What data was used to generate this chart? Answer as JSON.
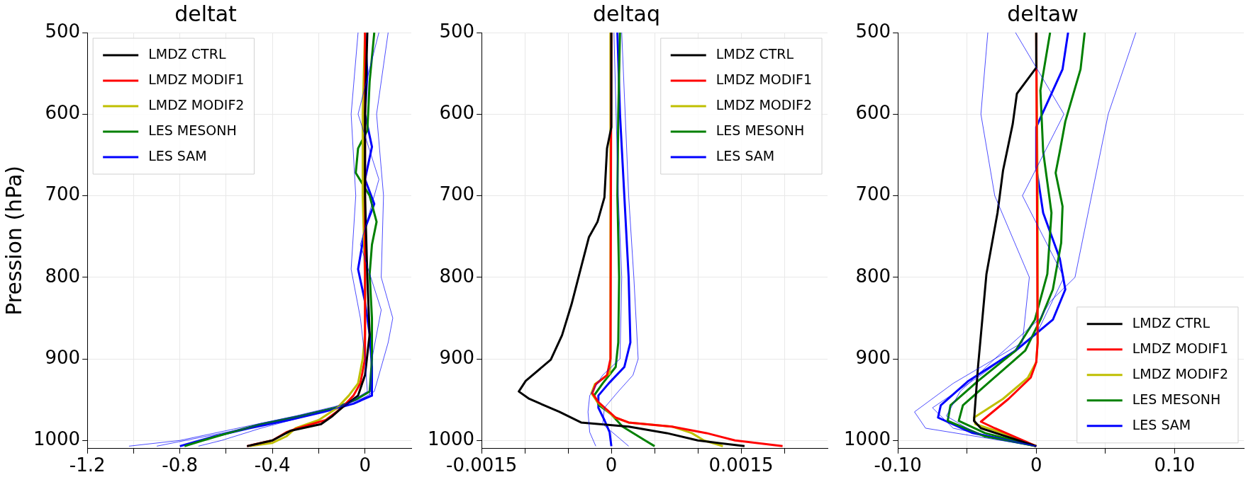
{
  "chart_data": [
    {
      "type": "line",
      "title": "deltat",
      "ylabel": "Pression (hPa)",
      "xlim": [
        -1.2,
        0.2
      ],
      "xticks": [
        -1.2,
        {
          "value": -1.0,
          "label": null
        },
        -0.8,
        {
          "value": -0.6,
          "label": null
        },
        -0.4,
        {
          "value": -0.2,
          "label": null
        },
        0
      ],
      "ylim": [
        1010,
        500
      ],
      "yticks": [
        500,
        600,
        700,
        800,
        900,
        1000
      ],
      "grid": true,
      "legend": "top left",
      "series": [
        {
          "color": "#0000ff",
          "x": [
            0.1,
            0.05,
            0.08,
            0.07,
            0.12,
            0.1,
            0.04,
            -0.05,
            -0.25,
            -0.45,
            -0.62,
            -0.72
          ],
          "values": [
            500,
            600,
            700,
            800,
            850,
            880,
            940,
            955,
            970,
            985,
            1000,
            1007
          ]
        },
        {
          "color": "#0000ff",
          "x": [
            -0.03,
            -0.06,
            -0.04,
            -0.06,
            -0.02,
            0.0,
            0.01,
            -0.08,
            -0.3,
            -0.55,
            -0.8,
            -1.02
          ],
          "values": [
            500,
            600,
            700,
            790,
            850,
            900,
            940,
            955,
            970,
            985,
            1000,
            1007
          ]
        },
        {
          "color": "#0000ff",
          "x": [
            0.06,
            -0.03,
            0.06,
            -0.02,
            0.07,
            0.03,
            0.02,
            -0.12,
            -0.35,
            -0.6,
            -0.9
          ],
          "values": [
            500,
            600,
            680,
            760,
            840,
            900,
            945,
            960,
            975,
            990,
            1007
          ]
        },
        {
          "name": "LMDZ CTRL",
          "color": "#000000",
          "x": [
            0.01,
            0.0,
            0.0,
            0.01,
            0.02,
            0.0,
            -0.03,
            -0.1,
            -0.14,
            -0.19,
            -0.32,
            -0.4,
            -0.51
          ],
          "values": [
            500,
            600,
            700,
            800,
            870,
            920,
            945,
            960,
            970,
            980,
            988,
            1000,
            1007
          ]
        },
        {
          "name": "LMDZ MODIF1",
          "color": "#ff0000",
          "x": [
            0.0,
            0.0,
            -0.02,
            -0.05,
            -0.1,
            -0.17,
            -0.29,
            -0.34,
            -0.4,
            -0.48,
            -0.51
          ],
          "values": [
            500,
            900,
            930,
            945,
            960,
            975,
            985,
            990,
            1000,
            1005,
            1007
          ]
        },
        {
          "name": "LMDZ MODIF2",
          "color": "#bfbf00",
          "x": [
            0.0,
            -0.01,
            -0.01,
            0.0,
            0.0,
            -0.01,
            -0.03,
            -0.07,
            -0.12,
            -0.2,
            -0.3,
            -0.34,
            -0.4,
            -0.5
          ],
          "values": [
            500,
            600,
            700,
            800,
            870,
            900,
            930,
            945,
            960,
            975,
            985,
            995,
            1003,
            1007
          ]
        },
        {
          "name": "LES MESONH",
          "color": "#008000",
          "x": [
            0.04,
            0.02,
            0.01,
            -0.03,
            -0.04,
            0.02,
            0.05,
            0.03,
            0.02,
            0.03,
            0.03,
            0.02,
            -0.04,
            -0.13,
            -0.28,
            -0.45,
            -0.58,
            -0.7,
            -0.78
          ],
          "values": [
            500,
            560,
            620,
            642,
            672,
            700,
            732,
            760,
            796,
            850,
            900,
            940,
            950,
            960,
            970,
            980,
            990,
            1000,
            1007
          ]
        },
        {
          "name": "LES SAM",
          "color": "#0000ff",
          "x": [
            0.0,
            0.01,
            0.0,
            0.03,
            0.0,
            0.04,
            0.0,
            -0.03,
            0.0,
            0.02,
            0.03,
            0.03,
            -0.05,
            -0.18,
            -0.33,
            -0.5,
            -0.65,
            -0.8
          ],
          "values": [
            500,
            550,
            600,
            640,
            680,
            710,
            740,
            790,
            830,
            870,
            910,
            945,
            955,
            965,
            975,
            985,
            995,
            1007
          ]
        }
      ]
    },
    {
      "type": "line",
      "title": "deltaq",
      "xlim": [
        -0.0015,
        0.0025
      ],
      "xticks": [
        -0.0015,
        {
          "value": -0.001,
          "label": null
        },
        {
          "value": -0.0005,
          "label": null
        },
        0,
        {
          "value": 0.0005,
          "label": null
        },
        {
          "value": 0.001,
          "label": null
        },
        0.0015,
        {
          "value": 0.002,
          "label": null
        }
      ],
      "ylim": [
        1010,
        500
      ],
      "yticks": [
        500,
        600,
        700,
        800,
        900,
        1000
      ],
      "grid": true,
      "legend": "top right",
      "series": [
        {
          "color": "#0000ff",
          "x": [
            0.00012,
            0.0002,
            0.00026,
            0.00031,
            0.00025,
            8e-05,
            -8e-05,
            -0.0001,
            0.0002
          ],
          "values": [
            500,
            700,
            800,
            900,
            920,
            940,
            960,
            980,
            1007
          ]
        },
        {
          "color": "#0000ff",
          "x": [
            3e-05,
            8e-05,
            0.00012,
            0.0001,
            -0.0001,
            -0.00025,
            -0.00027,
            -0.00025,
            -0.00018
          ],
          "values": [
            500,
            700,
            800,
            900,
            920,
            945,
            965,
            990,
            1007
          ]
        },
        {
          "name": "LMDZ CTRL",
          "color": "#000000",
          "x": [
            0.0,
            0.0,
            -5e-05,
            -8e-05,
            -0.00016,
            -0.00026,
            -0.00037,
            -0.00046,
            -0.00057,
            -0.0007,
            -0.00099,
            -0.00107,
            -0.00095,
            -0.0006,
            -0.00035,
            0.0002,
            0.00064,
            0.001,
            0.00154
          ],
          "values": [
            500,
            616,
            642,
            702,
            732,
            751,
            796,
            833,
            871,
            901,
            927,
            940,
            949,
            965,
            978,
            983,
            991,
            1000,
            1007
          ]
        },
        {
          "name": "LMDZ MODIF1",
          "color": "#ff0000",
          "x": [
            0.0,
            -1e-05,
            -5e-05,
            -0.00018,
            -0.00022,
            -0.00015,
            5e-05,
            0.0002,
            0.0007,
            0.0011,
            0.00143,
            0.00198
          ],
          "values": [
            500,
            900,
            920,
            931,
            942,
            953,
            972,
            978,
            983,
            991,
            1000,
            1007
          ]
        },
        {
          "name": "LMDZ MODIF2",
          "color": "#bfbf00",
          "x": [
            -1e-05,
            -1e-05,
            -2e-05,
            -0.00019,
            -0.00023,
            -0.00016,
            4e-05,
            0.0002,
            0.0007,
            0.00093,
            0.00107,
            0.00129
          ],
          "values": [
            500,
            900,
            918,
            931,
            942,
            953,
            972,
            978,
            983,
            991,
            1000,
            1007
          ]
        },
        {
          "name": "LES MESONH",
          "color": "#008000",
          "x": [
            0.0001,
            8e-05,
            7e-05,
            9e-05,
            8e-05,
            5e-05,
            -0.0001,
            -0.0002,
            -0.00014,
            0.0,
            0.00013,
            0.00039,
            0.0005
          ],
          "values": [
            500,
            600,
            700,
            800,
            880,
            910,
            930,
            945,
            957,
            968,
            983,
            1000,
            1007
          ]
        },
        {
          "name": "LES SAM",
          "color": "#0000ff",
          "x": [
            7e-05,
            0.0001,
            0.00015,
            0.0002,
            0.00022,
            0.00015,
            -3e-05,
            -0.00015,
            -0.00015,
            -8e-05,
            -2e-05,
            0.0
          ],
          "values": [
            500,
            600,
            700,
            800,
            880,
            910,
            930,
            945,
            960,
            975,
            990,
            1007
          ]
        }
      ]
    },
    {
      "type": "line",
      "title": "deltaw",
      "xlim": [
        -0.1,
        0.15
      ],
      "xticks": [
        {
          "value": -0.1,
          "label": "-0.10"
        },
        {
          "value": -0.05,
          "label": null
        },
        0,
        {
          "value": 0.05,
          "label": null
        },
        {
          "value": 0.1,
          "label": "0.10"
        }
      ],
      "ylim": [
        1010,
        500
      ],
      "yticks": [
        500,
        600,
        700,
        800,
        900,
        1000
      ],
      "grid": true,
      "legend": "bottom right",
      "series": [
        {
          "color": "#0000ff",
          "x": [
            -0.035,
            -0.04,
            -0.03,
            -0.005,
            -0.01,
            -0.06,
            -0.088,
            -0.08,
            0.0
          ],
          "values": [
            500,
            600,
            700,
            800,
            880,
            930,
            965,
            985,
            1007
          ]
        },
        {
          "color": "#0000ff",
          "x": [
            0.072,
            0.052,
            0.04,
            0.028,
            0.01,
            0.003,
            -0.03,
            -0.055,
            -0.065,
            -0.045,
            0.0
          ],
          "values": [
            500,
            600,
            700,
            800,
            830,
            850,
            900,
            940,
            970,
            990,
            1007
          ]
        },
        {
          "color": "#0000ff",
          "x": [
            -0.015,
            0.02,
            -0.01,
            0.02,
            0.0,
            -0.04,
            -0.075,
            -0.06,
            0.0
          ],
          "values": [
            500,
            600,
            700,
            800,
            870,
            920,
            960,
            985,
            1007
          ]
        },
        {
          "name": "LMDZ CTRL",
          "color": "#000000",
          "x": [
            0.0,
            0.0,
            -0.014,
            -0.017,
            -0.024,
            -0.028,
            -0.036,
            -0.042,
            -0.045,
            -0.04,
            0.0
          ],
          "values": [
            500,
            543,
            575,
            612,
            669,
            721,
            796,
            908,
            976,
            985,
            1007
          ]
        },
        {
          "name": "LMDZ MODIF1",
          "color": "#ff0000",
          "x": [
            0.0,
            0.001,
            0.0,
            -0.004,
            -0.02,
            -0.04,
            -0.03,
            0.0
          ],
          "values": [
            500,
            880,
            904,
            923,
            949,
            977,
            985,
            1007
          ]
        },
        {
          "name": "LMDZ MODIF2",
          "color": "#bfbf00",
          "x": [
            0.0,
            0.001,
            0.001,
            0.0,
            -0.006,
            -0.024,
            -0.045,
            -0.044,
            -0.024,
            0.0
          ],
          "values": [
            500,
            700,
            880,
            904,
            923,
            949,
            972,
            980,
            991,
            1007
          ]
        },
        {
          "name": "LES MESONH",
          "color": "#008000",
          "x": [
            0.035,
            0.032,
            0.021,
            0.017,
            0.014,
            0.019,
            0.018,
            0.012,
            0.003,
            -0.008,
            -0.033,
            -0.053,
            -0.056,
            -0.037,
            0.0
          ],
          "values": [
            500,
            545,
            609,
            646,
            672,
            713,
            758,
            815,
            852,
            890,
            927,
            957,
            976,
            991,
            1007
          ]
        },
        {
          "color": "#008000",
          "x": [
            0.01,
            0.003,
            0.005,
            0.011,
            0.008,
            -0.001,
            -0.015,
            -0.042,
            -0.062,
            -0.064,
            -0.037,
            0.0
          ],
          "values": [
            500,
            571,
            646,
            721,
            796,
            852,
            890,
            927,
            957,
            976,
            995,
            1007
          ]
        },
        {
          "name": "LES SAM",
          "color": "#0000ff",
          "x": [
            0.023,
            0.019,
            0.008,
            0.0,
            0.0,
            0.005,
            0.017,
            0.021,
            0.012,
            -0.015,
            -0.049,
            -0.069,
            -0.071,
            -0.046,
            0.0
          ],
          "values": [
            500,
            545,
            586,
            616,
            665,
            721,
            777,
            815,
            852,
            890,
            927,
            957,
            972,
            991,
            1007
          ]
        }
      ]
    }
  ]
}
